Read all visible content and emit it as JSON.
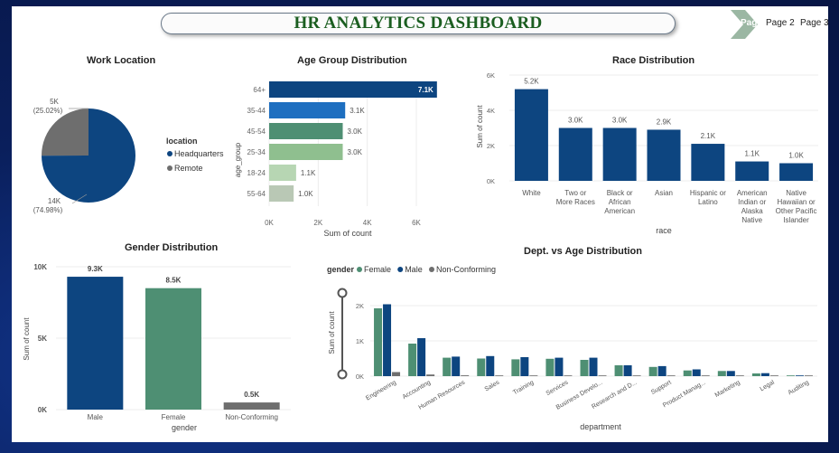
{
  "header": {
    "title": "HR ANALYTICS DASHBOARD"
  },
  "nav": {
    "page1_label": "Page 1",
    "page2_label": "Page 2",
    "page3_label": "Page 3"
  },
  "colors": {
    "navy": "#0d4580",
    "teal": "#4e8f73",
    "gray": "#6e6e6e",
    "blue": "#1565c0"
  },
  "work_location": {
    "title": "Work Location",
    "legend_title": "location",
    "slices": [
      {
        "name": "Headquarters",
        "value_label": "14K",
        "pct_label": "(74.98%)",
        "pct": 74.98,
        "color": "#0d4580"
      },
      {
        "name": "Remote",
        "value_label": "5K",
        "pct_label": "(25.02%)",
        "pct": 25.02,
        "color": "#6e6e6e"
      }
    ]
  },
  "age_group": {
    "title": "Age Group Distribution",
    "ylabel": "age_group",
    "xlabel": "Sum of count",
    "xticks": [
      "0K",
      "2K",
      "4K",
      "6K"
    ],
    "xmax": 6000,
    "bars": [
      {
        "cat": "64+",
        "value": 7100,
        "label": "7.1K",
        "color": "#0d4580"
      },
      {
        "cat": "35-44",
        "value": 3100,
        "label": "3.1K",
        "color": "#1e6fc0"
      },
      {
        "cat": "45-54",
        "value": 3000,
        "label": "3.0K",
        "color": "#4e8f73"
      },
      {
        "cat": "25-34",
        "value": 3000,
        "label": "3.0K",
        "color": "#8fbf8f"
      },
      {
        "cat": "18-24",
        "value": 1100,
        "label": "1.1K",
        "color": "#b7d6b3"
      },
      {
        "cat": "55-64",
        "value": 1000,
        "label": "1.0K",
        "color": "#b9c8b5"
      }
    ]
  },
  "race": {
    "title": "Race Distribution",
    "ylabel": "Sum of count",
    "xlabel": "race",
    "yticks": [
      "6K",
      "4K",
      "2K",
      "0K"
    ],
    "ymax": 6000,
    "bars": [
      {
        "cat": [
          "White"
        ],
        "value": 5200,
        "label": "5.2K"
      },
      {
        "cat": [
          "Two or",
          "More Races"
        ],
        "value": 3000,
        "label": "3.0K"
      },
      {
        "cat": [
          "Black or",
          "African",
          "American"
        ],
        "value": 3000,
        "label": "3.0K"
      },
      {
        "cat": [
          "Asian"
        ],
        "value": 2900,
        "label": "2.9K"
      },
      {
        "cat": [
          "Hispanic or",
          "Latino"
        ],
        "value": 2100,
        "label": "2.1K"
      },
      {
        "cat": [
          "American",
          "Indian or",
          "Alaska",
          "Native"
        ],
        "value": 1100,
        "label": "1.1K"
      },
      {
        "cat": [
          "Native",
          "Hawaiian or",
          "Other Pacific",
          "Islander"
        ],
        "value": 1000,
        "label": "1.0K"
      }
    ]
  },
  "gender": {
    "title": "Gender Distribution",
    "ylabel": "Sum of count",
    "xlabel": "gender",
    "yticks": [
      "10K",
      "5K",
      "0K"
    ],
    "ymax": 10000,
    "bars": [
      {
        "cat": "Male",
        "value": 9300,
        "label": "9.3K",
        "color": "#0d4580"
      },
      {
        "cat": "Female",
        "value": 8500,
        "label": "8.5K",
        "color": "#4e8f73"
      },
      {
        "cat": "Non-Conforming",
        "value": 500,
        "label": "0.5K",
        "color": "#6e6e6e"
      }
    ]
  },
  "dept_age": {
    "title": "Dept. vs Age Distribution",
    "legend_title": "gender",
    "legend": [
      {
        "name": "Female",
        "color": "#4e8f73"
      },
      {
        "name": "Male",
        "color": "#0d4580"
      },
      {
        "name": "Non-Conforming",
        "color": "#6e6e6e"
      }
    ],
    "ylabel": "Sum of count",
    "xlabel": "department",
    "yticks": [
      "2K",
      "1K",
      "0K"
    ],
    "ymax": 2600,
    "categories": [
      "Engineering",
      "Accounting",
      "Human Resources",
      "Sales",
      "Training",
      "Services",
      "Business Develo...",
      "Research and D...",
      "Support",
      "Product Manag...",
      "Marketing",
      "Legal",
      "Auditing"
    ],
    "series": [
      {
        "name": "Female",
        "values": [
          2500,
          1200,
          680,
          650,
          620,
          640,
          600,
          400,
          340,
          210,
          190,
          100,
          20
        ]
      },
      {
        "name": "Male",
        "values": [
          2650,
          1400,
          720,
          740,
          700,
          680,
          680,
          400,
          370,
          250,
          190,
          110,
          20
        ]
      },
      {
        "name": "Non-Conforming",
        "values": [
          150,
          60,
          30,
          25,
          25,
          25,
          20,
          15,
          10,
          8,
          5,
          4,
          2
        ]
      }
    ]
  }
}
